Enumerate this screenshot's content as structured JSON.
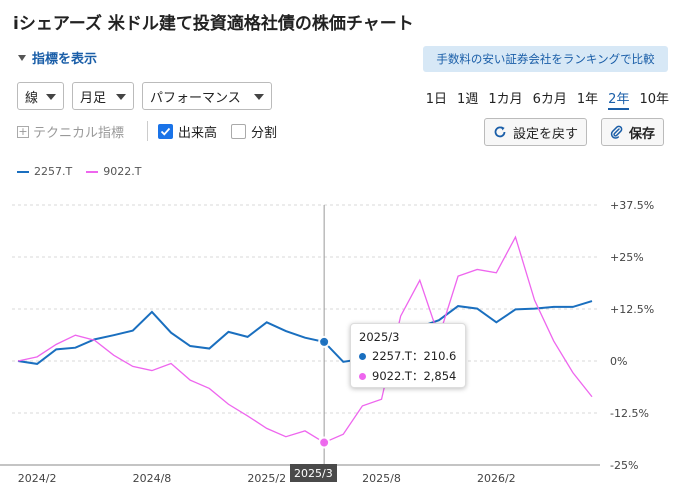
{
  "title": "iシェアーズ 米ドル建て投資適格社債の株価チャート",
  "indicator_toggle": "指標を表示",
  "ranking_button": "手数料の安い証券会社をランキングで比較",
  "selects": {
    "line_type": "線",
    "interval": "月足",
    "mode": "パフォーマンス"
  },
  "periods": [
    "1日",
    "1週",
    "1カ月",
    "6カ月",
    "1年",
    "2年",
    "10年"
  ],
  "active_period": "2年",
  "technical_label": "テクニカル指標",
  "volume_label": "出来高",
  "volume_checked": true,
  "split_label": "分割",
  "split_checked": false,
  "reset_button": "設定を戻す",
  "save_button": "保存",
  "colors": {
    "accent": "#1a5ea8",
    "series1": "#1a6fbf",
    "series2": "#ee66ee"
  },
  "tooltip": {
    "date": "2025/3",
    "rows": [
      {
        "label": "2257.T：210.6",
        "color": "#1a6fbf"
      },
      {
        "label": "9022.T：2,854",
        "color": "#ee66ee"
      }
    ]
  },
  "crosshair_label": "2025/3",
  "chart_data": {
    "type": "line",
    "y_unit": "%",
    "ylim": [
      -25,
      37.5
    ],
    "y_ticks": [
      "+37.5%",
      "+25%",
      "+12.5%",
      "0%",
      "-12.5%",
      "-25%"
    ],
    "y_tick_values": [
      37.5,
      25,
      12.5,
      0,
      -12.5,
      -25
    ],
    "x_labels": [
      "2024/2",
      "2024/8",
      "2025/2",
      "2025/8",
      "2026/2"
    ],
    "x_label_index": [
      1,
      7,
      13,
      19,
      25
    ],
    "grid": true,
    "legend_position": "top-left",
    "series": [
      {
        "name": "2257.T",
        "color": "#1a6fbf",
        "values": [
          0,
          -0.7,
          2.8,
          3.2,
          5.2,
          6.2,
          7.3,
          11.8,
          6.8,
          3.6,
          3.0,
          7.0,
          5.8,
          9.3,
          7.2,
          5.6,
          4.6,
          -0.2,
          0.5,
          1.6,
          5.8,
          8.2,
          9.8,
          13.2,
          12.6,
          9.3,
          12.4,
          12.6,
          13.0,
          13.0,
          14.4
        ]
      },
      {
        "name": "9022.T",
        "color": "#ee66ee",
        "values": [
          0,
          1.0,
          4.0,
          6.2,
          5.0,
          1.4,
          -1.3,
          -2.3,
          -0.6,
          -4.6,
          -6.6,
          -10.4,
          -13.2,
          -16.2,
          -18.2,
          -16.8,
          -19.6,
          -17.6,
          -10.8,
          -9.2,
          10.8,
          19.4,
          5.8,
          20.4,
          22.0,
          21.2,
          29.8,
          14.6,
          4.8,
          -2.8,
          -8.6
        ]
      }
    ]
  }
}
